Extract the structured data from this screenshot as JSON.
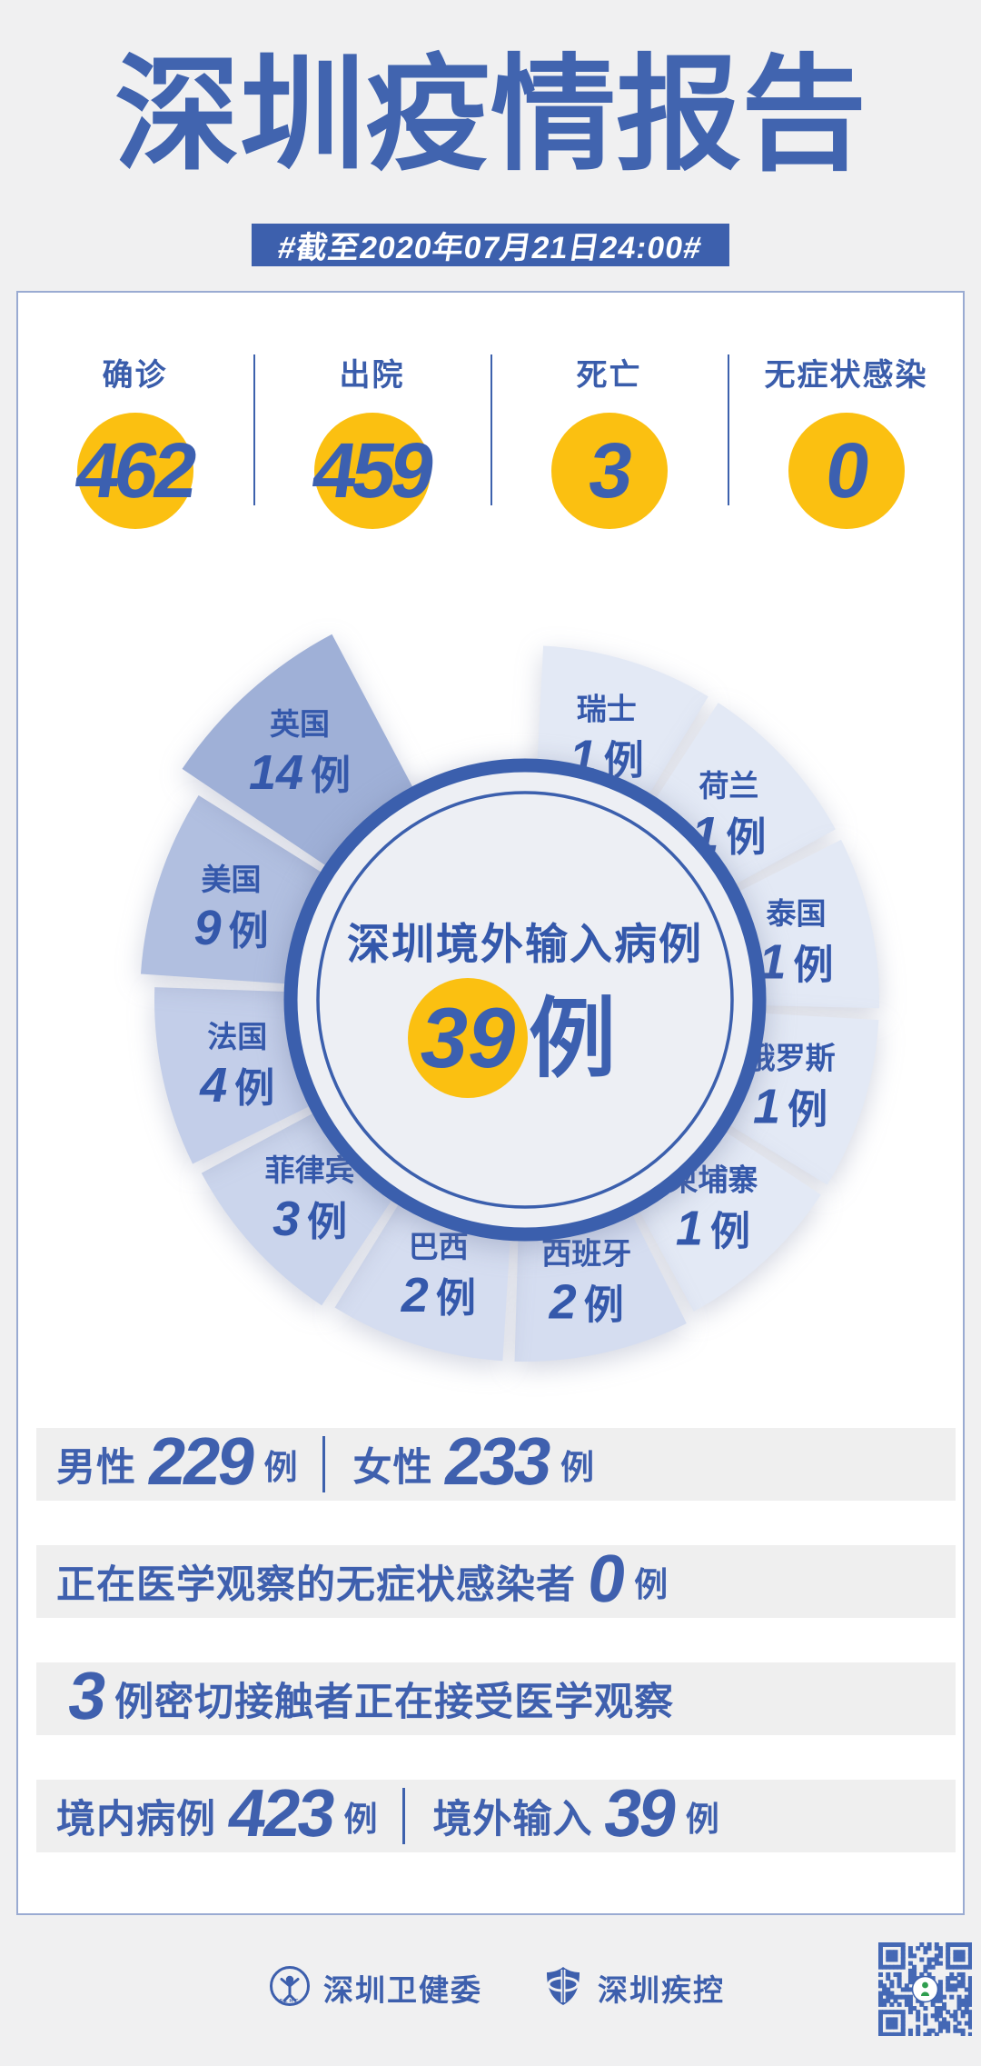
{
  "page": {
    "background": "#f0f0f1",
    "accent_blue": "#3d61ad",
    "text_blue": "#3f60ae",
    "highlight_yellow": "#fbc011",
    "card_background": "#ffffff",
    "row_background": "#efefef"
  },
  "header": {
    "title": "深圳疫情报告",
    "date_badge": "#截至2020年07月21日24:00#"
  },
  "summary_stats": [
    {
      "label": "确诊",
      "value": "462"
    },
    {
      "label": "出院",
      "value": "459"
    },
    {
      "label": "死亡",
      "value": "3"
    },
    {
      "label": "无症状感染",
      "value": "0"
    }
  ],
  "chart_data": {
    "type": "pie",
    "variant": "rose-donut",
    "center_title": "深圳境外输入病例",
    "center_value": "39",
    "center_unit": "例",
    "value_suffix": "例",
    "legend_position": "on-wedge",
    "series": [
      {
        "name": "瑞士",
        "value": 1
      },
      {
        "name": "荷兰",
        "value": 1
      },
      {
        "name": "泰国",
        "value": 1
      },
      {
        "name": "俄罗斯",
        "value": 1
      },
      {
        "name": "柬埔寨",
        "value": 1
      },
      {
        "name": "西班牙",
        "value": 2
      },
      {
        "name": "巴西",
        "value": 2
      },
      {
        "name": "菲律宾",
        "value": 3
      },
      {
        "name": "法国",
        "value": 4
      },
      {
        "name": "美国",
        "value": 9
      },
      {
        "name": "英国",
        "value": 14
      }
    ],
    "palette_by_value": {
      "1": "#e3e9f5",
      "2": "#d5ddf0",
      "3": "#cbd5ec",
      "4": "#c3cee9",
      "9": "#b1bfe0",
      "14": "#9fb0d7"
    },
    "ring_color": "#3b5fad",
    "center_fill": "#edeff4",
    "label_color": "#3458ab"
  },
  "detail_rows": [
    {
      "segments": [
        {
          "kind": "text",
          "t": "男性"
        },
        {
          "kind": "num",
          "t": "229"
        },
        {
          "kind": "unit",
          "t": "例"
        },
        {
          "kind": "sep",
          "t": ""
        },
        {
          "kind": "text",
          "t": "女性"
        },
        {
          "kind": "num",
          "t": "233"
        },
        {
          "kind": "unit",
          "t": "例"
        }
      ]
    },
    {
      "segments": [
        {
          "kind": "text",
          "t": "正在医学观察的无症状感染者"
        },
        {
          "kind": "num",
          "t": "0"
        },
        {
          "kind": "unit",
          "t": "例"
        }
      ]
    },
    {
      "segments": [
        {
          "kind": "num",
          "t": "3"
        },
        {
          "kind": "text",
          "t": "例密切接触者正在接受医学观察"
        }
      ]
    },
    {
      "segments": [
        {
          "kind": "text",
          "t": "境内病例"
        },
        {
          "kind": "num",
          "t": "423"
        },
        {
          "kind": "unit",
          "t": "例"
        },
        {
          "kind": "sep",
          "t": ""
        },
        {
          "kind": "text",
          "t": "境外输入"
        },
        {
          "kind": "num",
          "t": "39"
        },
        {
          "kind": "unit",
          "t": "例"
        }
      ]
    }
  ],
  "footer": {
    "org_health_commission": "深圳卫健委",
    "org_cdc": "深圳疾控"
  }
}
